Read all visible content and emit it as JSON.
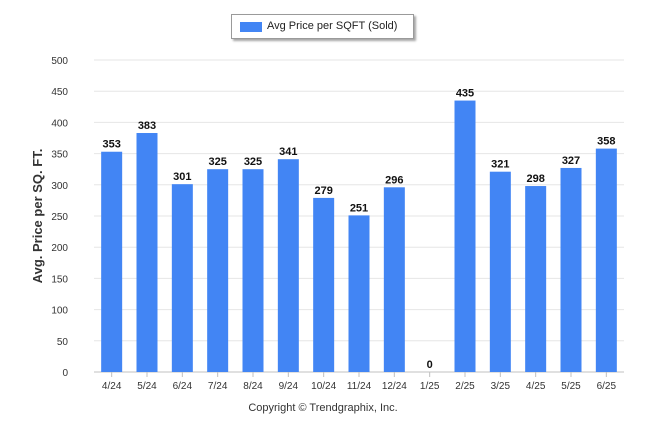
{
  "chart_data": {
    "type": "bar",
    "title": "",
    "xlabel": "",
    "ylabel": "Avg. Price per SQ. FT.",
    "categories": [
      "4/24",
      "5/24",
      "6/24",
      "7/24",
      "8/24",
      "9/24",
      "10/24",
      "11/24",
      "12/24",
      "1/25",
      "2/25",
      "3/25",
      "4/25",
      "5/25",
      "6/25"
    ],
    "series": [
      {
        "name": "Avg Price per SQFT (Sold)",
        "values": [
          353,
          383,
          301,
          325,
          325,
          341,
          279,
          251,
          296,
          0,
          435,
          321,
          298,
          327,
          358
        ]
      }
    ],
    "ylim": [
      0,
      500
    ],
    "yticks": [
      0,
      50,
      100,
      150,
      200,
      250,
      300,
      350,
      400,
      450,
      500
    ],
    "grid": true,
    "legend_placement": "top-center",
    "data_labels": true,
    "colors": {
      "bar": "#4285f4",
      "grid": "#e6e6e6",
      "axis": "#c0c0c0",
      "label": "#111111"
    }
  },
  "footer": {
    "copyright": "Copyright © Trendgraphix, Inc."
  }
}
